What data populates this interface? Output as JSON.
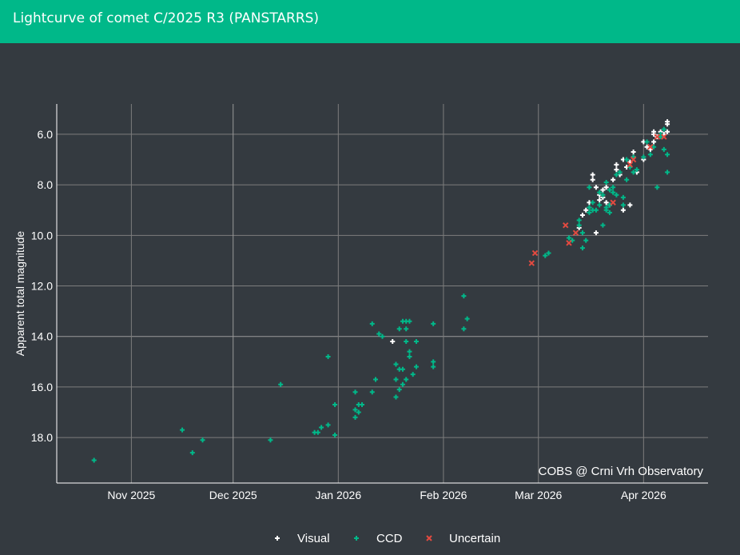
{
  "header": {
    "title": "Lightcurve of comet C/2025 R3 (PANSTARRS)"
  },
  "chart_data": {
    "type": "scatter",
    "title": "Lightcurve of comet C/2025 R3 (PANSTARRS)",
    "ylabel": "Apparent total magnitude",
    "xlabel": "",
    "y_reversed": true,
    "ylim": [
      19.8,
      4.8
    ],
    "xlim": [
      "2025-10-10",
      "2026-04-20"
    ],
    "grid": true,
    "legend_position": "bottom",
    "watermark": "COBS @ Crni Vrh Observatory",
    "x_ticks": [
      {
        "date": "2025-11-01",
        "label": "Nov 2025"
      },
      {
        "date": "2025-12-01",
        "label": "Dec 2025"
      },
      {
        "date": "2026-01-01",
        "label": "Jan 2026"
      },
      {
        "date": "2026-02-01",
        "label": "Feb 2026"
      },
      {
        "date": "2026-03-01",
        "label": "Mar 2026"
      },
      {
        "date": "2026-04-01",
        "label": "Apr 2026"
      }
    ],
    "y_ticks": [
      {
        "value": 6,
        "label": "6.0"
      },
      {
        "value": 8,
        "label": "8.0"
      },
      {
        "value": 10,
        "label": "10.0"
      },
      {
        "value": 12,
        "label": "12.0"
      },
      {
        "value": 14,
        "label": "14.0"
      },
      {
        "value": 16,
        "label": "16.0"
      },
      {
        "value": 18,
        "label": "18.0"
      }
    ],
    "series": [
      {
        "name": "Visual",
        "color": "#ffffff",
        "marker": "cross",
        "points": [
          [
            "2026-01-17",
            14.2
          ],
          [
            "2026-03-13",
            9.7
          ],
          [
            "2026-03-14",
            9.2
          ],
          [
            "2026-03-15",
            9.0
          ],
          [
            "2026-03-16",
            8.7
          ],
          [
            "2026-03-16",
            8.9
          ],
          [
            "2026-03-17",
            7.6
          ],
          [
            "2026-03-17",
            7.8
          ],
          [
            "2026-03-18",
            9.9
          ],
          [
            "2026-03-18",
            8.1
          ],
          [
            "2026-03-19",
            8.4
          ],
          [
            "2026-03-19",
            8.6
          ],
          [
            "2026-03-20",
            8.2
          ],
          [
            "2026-03-20",
            8.5
          ],
          [
            "2026-03-21",
            8.7
          ],
          [
            "2026-03-21",
            8.1
          ],
          [
            "2026-03-22",
            8.8
          ],
          [
            "2026-03-23",
            7.8
          ],
          [
            "2026-03-24",
            7.2
          ],
          [
            "2026-03-24",
            7.4
          ],
          [
            "2026-03-25",
            7.6
          ],
          [
            "2026-03-26",
            9.0
          ],
          [
            "2026-03-26",
            7.0
          ],
          [
            "2026-03-27",
            7.3
          ],
          [
            "2026-03-28",
            8.8
          ],
          [
            "2026-03-28",
            7.1
          ],
          [
            "2026-03-29",
            6.7
          ],
          [
            "2026-03-29",
            6.9
          ],
          [
            "2026-03-30",
            7.5
          ],
          [
            "2026-04-01",
            7.0
          ],
          [
            "2026-04-01",
            6.3
          ],
          [
            "2026-04-02",
            6.5
          ],
          [
            "2026-04-03",
            6.6
          ],
          [
            "2026-04-04",
            6.0
          ],
          [
            "2026-04-04",
            6.3
          ],
          [
            "2026-04-04",
            5.9
          ],
          [
            "2026-04-05",
            6.1
          ],
          [
            "2026-04-06",
            5.9
          ],
          [
            "2026-04-07",
            6.0
          ],
          [
            "2026-04-08",
            5.6
          ],
          [
            "2026-04-08",
            5.9
          ],
          [
            "2026-04-08",
            5.5
          ]
        ]
      },
      {
        "name": "CCD",
        "color": "#00b889",
        "marker": "cross",
        "points": [
          [
            "2025-10-21",
            18.9
          ],
          [
            "2025-11-16",
            17.7
          ],
          [
            "2025-11-19",
            18.6
          ],
          [
            "2025-11-22",
            18.1
          ],
          [
            "2025-12-12",
            18.1
          ],
          [
            "2025-12-15",
            15.9
          ],
          [
            "2025-12-25",
            17.8
          ],
          [
            "2025-12-26",
            17.8
          ],
          [
            "2025-12-27",
            17.6
          ],
          [
            "2025-12-29",
            17.5
          ],
          [
            "2025-12-29",
            14.8
          ],
          [
            "2025-12-31",
            17.9
          ],
          [
            "2025-12-31",
            16.7
          ],
          [
            "2026-01-06",
            16.2
          ],
          [
            "2026-01-06",
            17.2
          ],
          [
            "2026-01-06",
            16.9
          ],
          [
            "2026-01-07",
            17.0
          ],
          [
            "2026-01-07",
            16.7
          ],
          [
            "2026-01-08",
            16.7
          ],
          [
            "2026-01-11",
            13.5
          ],
          [
            "2026-01-11",
            16.2
          ],
          [
            "2026-01-12",
            15.7
          ],
          [
            "2026-01-13",
            13.9
          ],
          [
            "2026-01-14",
            14.0
          ],
          [
            "2026-01-18",
            15.7
          ],
          [
            "2026-01-18",
            16.4
          ],
          [
            "2026-01-18",
            15.1
          ],
          [
            "2026-01-19",
            16.1
          ],
          [
            "2026-01-19",
            13.7
          ],
          [
            "2026-01-19",
            15.3
          ],
          [
            "2026-01-20",
            15.9
          ],
          [
            "2026-01-20",
            13.4
          ],
          [
            "2026-01-20",
            15.3
          ],
          [
            "2026-01-21",
            15.7
          ],
          [
            "2026-01-21",
            14.2
          ],
          [
            "2026-01-21",
            13.7
          ],
          [
            "2026-01-21",
            13.4
          ],
          [
            "2026-01-22",
            14.6
          ],
          [
            "2026-01-22",
            14.8
          ],
          [
            "2026-01-22",
            13.4
          ],
          [
            "2026-01-23",
            15.5
          ],
          [
            "2026-01-24",
            15.2
          ],
          [
            "2026-01-24",
            14.2
          ],
          [
            "2026-01-29",
            15.0
          ],
          [
            "2026-01-29",
            15.2
          ],
          [
            "2026-01-29",
            13.5
          ],
          [
            "2026-02-07",
            13.7
          ],
          [
            "2026-02-07",
            12.4
          ],
          [
            "2026-02-08",
            13.3
          ],
          [
            "2026-03-03",
            10.8
          ],
          [
            "2026-03-04",
            10.7
          ],
          [
            "2026-03-10",
            10.1
          ],
          [
            "2026-03-11",
            10.2
          ],
          [
            "2026-03-13",
            9.6
          ],
          [
            "2026-03-13",
            9.4
          ],
          [
            "2026-03-14",
            9.9
          ],
          [
            "2026-03-14",
            10.5
          ],
          [
            "2026-03-15",
            10.2
          ],
          [
            "2026-03-16",
            8.1
          ],
          [
            "2026-03-16",
            8.9
          ],
          [
            "2026-03-16",
            9.1
          ],
          [
            "2026-03-17",
            9.0
          ],
          [
            "2026-03-17",
            8.7
          ],
          [
            "2026-03-18",
            9.0
          ],
          [
            "2026-03-19",
            8.8
          ],
          [
            "2026-03-19",
            8.3
          ],
          [
            "2026-03-20",
            9.6
          ],
          [
            "2026-03-20",
            8.4
          ],
          [
            "2026-03-21",
            8.9
          ],
          [
            "2026-03-21",
            9.0
          ],
          [
            "2026-03-21",
            7.9
          ],
          [
            "2026-03-22",
            9.1
          ],
          [
            "2026-03-22",
            8.2
          ],
          [
            "2026-03-22",
            8.8
          ],
          [
            "2026-03-23",
            8.1
          ],
          [
            "2026-03-23",
            8.3
          ],
          [
            "2026-03-24",
            8.4
          ],
          [
            "2026-03-24",
            7.6
          ],
          [
            "2026-03-25",
            7.5
          ],
          [
            "2026-03-26",
            8.8
          ],
          [
            "2026-03-26",
            8.5
          ],
          [
            "2026-03-27",
            7.8
          ],
          [
            "2026-03-27",
            7.0
          ],
          [
            "2026-03-28",
            7.3
          ],
          [
            "2026-03-29",
            7.5
          ],
          [
            "2026-03-29",
            6.9
          ],
          [
            "2026-03-30",
            7.4
          ],
          [
            "2026-04-01",
            6.9
          ],
          [
            "2026-04-02",
            6.3
          ],
          [
            "2026-04-03",
            6.8
          ],
          [
            "2026-04-04",
            6.5
          ],
          [
            "2026-04-05",
            8.1
          ],
          [
            "2026-04-06",
            6.1
          ],
          [
            "2026-04-06",
            6.0
          ],
          [
            "2026-04-07",
            5.8
          ],
          [
            "2026-04-07",
            6.6
          ],
          [
            "2026-04-08",
            6.8
          ],
          [
            "2026-04-08",
            7.5
          ]
        ]
      },
      {
        "name": "Uncertain",
        "color": "#e34a40",
        "marker": "x",
        "points": [
          [
            "2026-02-27",
            11.1
          ],
          [
            "2026-02-28",
            10.7
          ],
          [
            "2026-03-09",
            9.6
          ],
          [
            "2026-03-10",
            10.3
          ],
          [
            "2026-03-12",
            9.9
          ],
          [
            "2026-03-23",
            8.7
          ],
          [
            "2026-03-28",
            7.2
          ],
          [
            "2026-03-29",
            7.0
          ],
          [
            "2026-04-03",
            6.5
          ],
          [
            "2026-04-05",
            6.1
          ],
          [
            "2026-04-07",
            6.1
          ]
        ]
      }
    ]
  }
}
